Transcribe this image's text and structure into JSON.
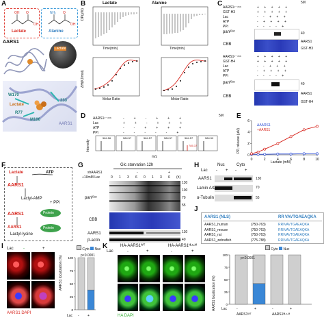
{
  "figure": {
    "panels": {
      "A": {
        "label": "A",
        "lactate": "Lactate",
        "alanine": "Alanine",
        "protein": "AARS1",
        "res_w170": "W170",
        "res_r77": "R77",
        "res_m100": "M100",
        "res_233": "233",
        "lactate_small": "Lactate",
        "aars1_small": "AARS1"
      },
      "B": {
        "label": "B",
        "left_title": "Lactate",
        "right_title": "Alanine",
        "time_label": "Time(min)",
        "molar_label": "Molar Ratio",
        "dp_label": "DP(μW)",
        "dh_label": "ΔH(KJ/mol)"
      },
      "C": {
        "label": "C",
        "rows_top": [
          "AARS1¹⁻⁴⁵⁶",
          "GST-H3",
          "Lac",
          "ATP",
          "PPi"
        ],
        "rows_bottom": [
          "AARS1¹⁻⁴⁵⁶",
          "GST-H4",
          "Lac",
          "ATP",
          "PPi"
        ],
        "pan": "panᴷˡᵃᶜ",
        "cbb": "CBB",
        "mw40a": "40",
        "mw40b": "40",
        "note_5m": "5M",
        "band_aars": "AARS1",
        "band_gsth3": "GST-H3",
        "band_gsth4": "GST-H4"
      },
      "D": {
        "label": "D",
        "rows": [
          "AARS1¹⁻⁴⁵⁶",
          "Lac",
          "ATP",
          "PPi"
        ],
        "note_5m": "5M",
        "y_label": "Intensity",
        "x_label": "m/z",
        "peaks": [
          "584.56",
          "584.57",
          "584.57",
          "584.57",
          "584.57",
          "584.50"
        ],
        "highlight": "785.37"
      },
      "E": {
        "label": "E",
        "y_label": "PPᵢ release (μM)",
        "x_label": "Lactate (mM)",
        "legend_a": "ΔAARS1",
        "legend_b": "+AARS1"
      },
      "F": {
        "label": "F",
        "lactate": "Lactate",
        "atp": "ATP",
        "aars1_top": "AARS1",
        "intermediate": "Lactyl-AMP",
        "ppi": "+ PPi",
        "aars1_mid": "AARS1",
        "protein": "Protein",
        "product": "Lactyl-lysine",
        "aars1_bottom": "AARS1"
      },
      "G": {
        "label": "G",
        "title": "Glc starvation 12h",
        "shaars": "shAARS1",
        "lac": "+10mM Lac",
        "lanes": [
          "0",
          "1",
          "3",
          "6",
          "0",
          "1",
          "3",
          "6",
          "(h)"
        ],
        "pan": "panᴷˡᵃᶜ",
        "cbb": "CBB",
        "aars1": "AARS1",
        "actin": "β-actin",
        "mw": [
          "130",
          "100",
          "70",
          "55",
          "130",
          "40"
        ]
      },
      "H": {
        "label": "H",
        "nuc": "Nuc",
        "cyto": "Cyto",
        "lac": "Lac",
        "signs": [
          "-",
          "+",
          "-",
          "+"
        ],
        "aars1": "AARS1",
        "lamin": "Lamin A/C",
        "tubulin": "α-Tubulin",
        "mw": [
          "130",
          "70",
          "55"
        ]
      },
      "I": {
        "label": "I",
        "lac": "Lac",
        "minus": "-",
        "plus": "+",
        "legend_label": "AARS1  DAPI",
        "bar_ylabel": "AARS1 localization (%)",
        "p_value": "p<0.0001",
        "legend_cyto": "Cyto",
        "legend_nuc": "Nuc",
        "x_lac": "Lac",
        "x_minus": "-",
        "x_plus": "+"
      },
      "J": {
        "label": "J",
        "header_left": "AARS1 (NLS)",
        "header_right": "RR VAVTGAEAQKA",
        "rows": [
          {
            "name": "AARS1_human",
            "range": "(750-763)",
            "seq": "RRIVAVTGAEAQKA"
          },
          {
            "name": "AARS1_mouse",
            "range": "(750-763)",
            "seq": "RRIVAVTGAEAQKA"
          },
          {
            "name": "AARS1_rat",
            "range": "(750-763)",
            "seq": "RRIVAVTGAEAQKA"
          },
          {
            "name": "AARS1_zebrafish",
            "range": "(775-788)",
            "seq": "RRIVAVTGAEAQKA"
          }
        ]
      },
      "K": {
        "label": "K",
        "wt": "HA-AARS1ᵂᵀ",
        "mut": "HA-AARS1ᴺᴸˢ-ᴹ",
        "lac": "Lac",
        "minus": "-",
        "plus": "+",
        "legend_label": "HA  DAPI",
        "bar_ylabel": "AARS1 localization (%)",
        "p_value": "p<0.0001",
        "legend_cyto": "Cyto",
        "legend_nuc": "Nuc",
        "x_lac": "Lac",
        "x_labels": [
          "-",
          "+",
          "-",
          "+"
        ],
        "x_groups": [
          "AARS1ᵂᵀ",
          "AARS1ᴺᴸˢ-ᴹ"
        ]
      }
    },
    "colors": {
      "red": "#d7261e",
      "blue": "#2f7dbf",
      "cbb": "#2c3db9",
      "gel": "#2a2a2a",
      "bar_light": "#cfcfcf",
      "bar_blue": "#3a87d6"
    }
  },
  "chart_data": [
    {
      "type": "line",
      "panel": "E",
      "xlabel": "Lactate (mM)",
      "ylabel": "PPᵢ release (μM)",
      "x": [
        0,
        1,
        2,
        4,
        6,
        8,
        10
      ],
      "series": [
        {
          "name": "ΔAARS1",
          "values": [
            0.1,
            0.1,
            0.1,
            0.15,
            0.15,
            0.2,
            0.2
          ]
        },
        {
          "name": "+AARS1",
          "values": [
            0.2,
            0.5,
            1.0,
            2.0,
            3.2,
            4.4,
            5.0
          ]
        }
      ],
      "xlim": [
        0,
        10
      ],
      "ylim": [
        0,
        6
      ],
      "xticks": [
        0,
        2,
        4,
        6,
        8,
        10
      ],
      "yticks": [
        0,
        2,
        4,
        6
      ]
    },
    {
      "type": "bar",
      "panel": "I",
      "ylabel": "AARS1 localization (%)",
      "categories": [
        "-",
        "+"
      ],
      "series": [
        {
          "name": "Cyto",
          "values": [
            100,
            62
          ]
        },
        {
          "name": "Nuc",
          "values": [
            0,
            38
          ]
        }
      ],
      "ylim": [
        0,
        100
      ],
      "yticks": [
        0,
        25,
        50,
        75,
        100
      ]
    },
    {
      "type": "bar",
      "panel": "K",
      "ylabel": "AARS1 localization (%)",
      "categories": [
        "-",
        "+",
        "-",
        "+"
      ],
      "series": [
        {
          "name": "Cyto",
          "values": [
            100,
            58,
            100,
            100
          ]
        },
        {
          "name": "Nuc",
          "values": [
            0,
            42,
            0,
            0
          ]
        }
      ],
      "ylim": [
        0,
        100
      ],
      "yticks": [
        0,
        25,
        50,
        75,
        100
      ]
    }
  ]
}
